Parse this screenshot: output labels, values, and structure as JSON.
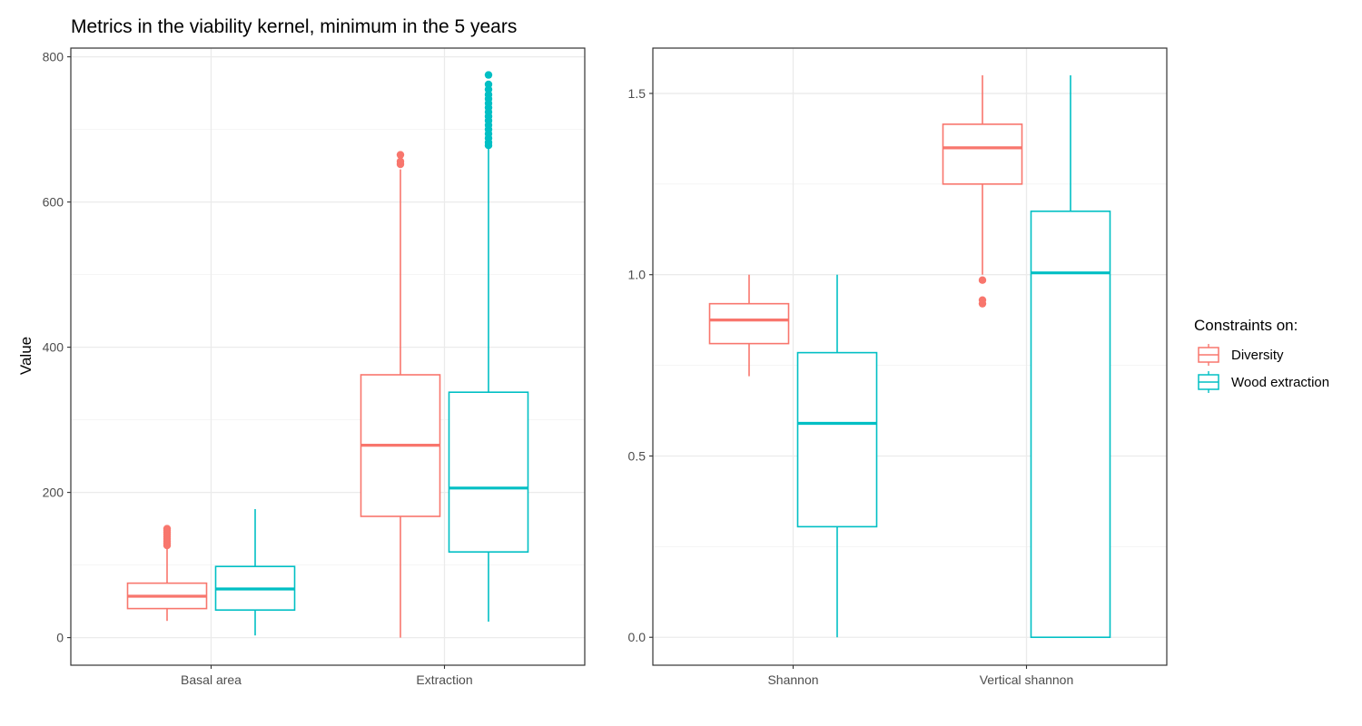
{
  "chart_data": {
    "type": "box",
    "title": "Metrics in the viability kernel, minimum in the 5 years",
    "ylabel": "Value",
    "legend": {
      "title": "Constraints on:",
      "placement": "right",
      "entries": [
        {
          "name": "Diversity",
          "color": "#F8766D"
        },
        {
          "name": "Wood extraction",
          "color": "#00BFC4"
        }
      ]
    },
    "grid": true,
    "panels": [
      {
        "categories": [
          "Basal area",
          "Extraction"
        ],
        "ylim": [
          -38,
          812
        ],
        "yticks": [
          0,
          200,
          400,
          600,
          800
        ],
        "yticklabels": [
          "0",
          "200",
          "400",
          "600",
          "800"
        ],
        "series": [
          {
            "name": "Diversity",
            "boxes": [
              {
                "lower_whisker": 23,
                "q1": 40,
                "median": 57,
                "q3": 75,
                "upper_whisker": 125,
                "outliers": [
                  127,
                  130,
                  133,
                  136,
                  139,
                  142,
                  145,
                  148,
                  150
                ]
              },
              {
                "lower_whisker": 0,
                "q1": 167,
                "median": 265,
                "q3": 362,
                "upper_whisker": 645,
                "outliers": [
                  652,
                  656,
                  665
                ]
              }
            ]
          },
          {
            "name": "Wood extraction",
            "boxes": [
              {
                "lower_whisker": 3,
                "q1": 38,
                "median": 67,
                "q3": 98,
                "upper_whisker": 177,
                "outliers": []
              },
              {
                "lower_whisker": 22,
                "q1": 118,
                "median": 206,
                "q3": 338,
                "upper_whisker": 675,
                "outliers": [
                  678,
                  682,
                  688,
                  694,
                  700,
                  706,
                  712,
                  718,
                  724,
                  730,
                  736,
                  742,
                  748,
                  755,
                  762,
                  775
                ]
              }
            ]
          }
        ]
      },
      {
        "categories": [
          "Shannon",
          "Vertical shannon"
        ],
        "ylim": [
          -0.077,
          1.625
        ],
        "yticks": [
          0.0,
          0.5,
          1.0,
          1.5
        ],
        "yticklabels": [
          "0.0",
          "0.5",
          "1.0",
          "1.5"
        ],
        "series": [
          {
            "name": "Diversity",
            "boxes": [
              {
                "lower_whisker": 0.72,
                "q1": 0.81,
                "median": 0.875,
                "q3": 0.92,
                "upper_whisker": 1.0,
                "outliers": []
              },
              {
                "lower_whisker": 1.0,
                "q1": 1.25,
                "median": 1.35,
                "q3": 1.415,
                "upper_whisker": 1.55,
                "outliers": [
                  0.92,
                  0.93,
                  0.985
                ]
              }
            ]
          },
          {
            "name": "Wood extraction",
            "boxes": [
              {
                "lower_whisker": 0.0,
                "q1": 0.305,
                "median": 0.59,
                "q3": 0.785,
                "upper_whisker": 1.0,
                "outliers": []
              },
              {
                "lower_whisker": 0.0,
                "q1": 0.0,
                "median": 1.005,
                "q3": 1.175,
                "upper_whisker": 1.55,
                "outliers": []
              }
            ]
          }
        ]
      }
    ]
  }
}
